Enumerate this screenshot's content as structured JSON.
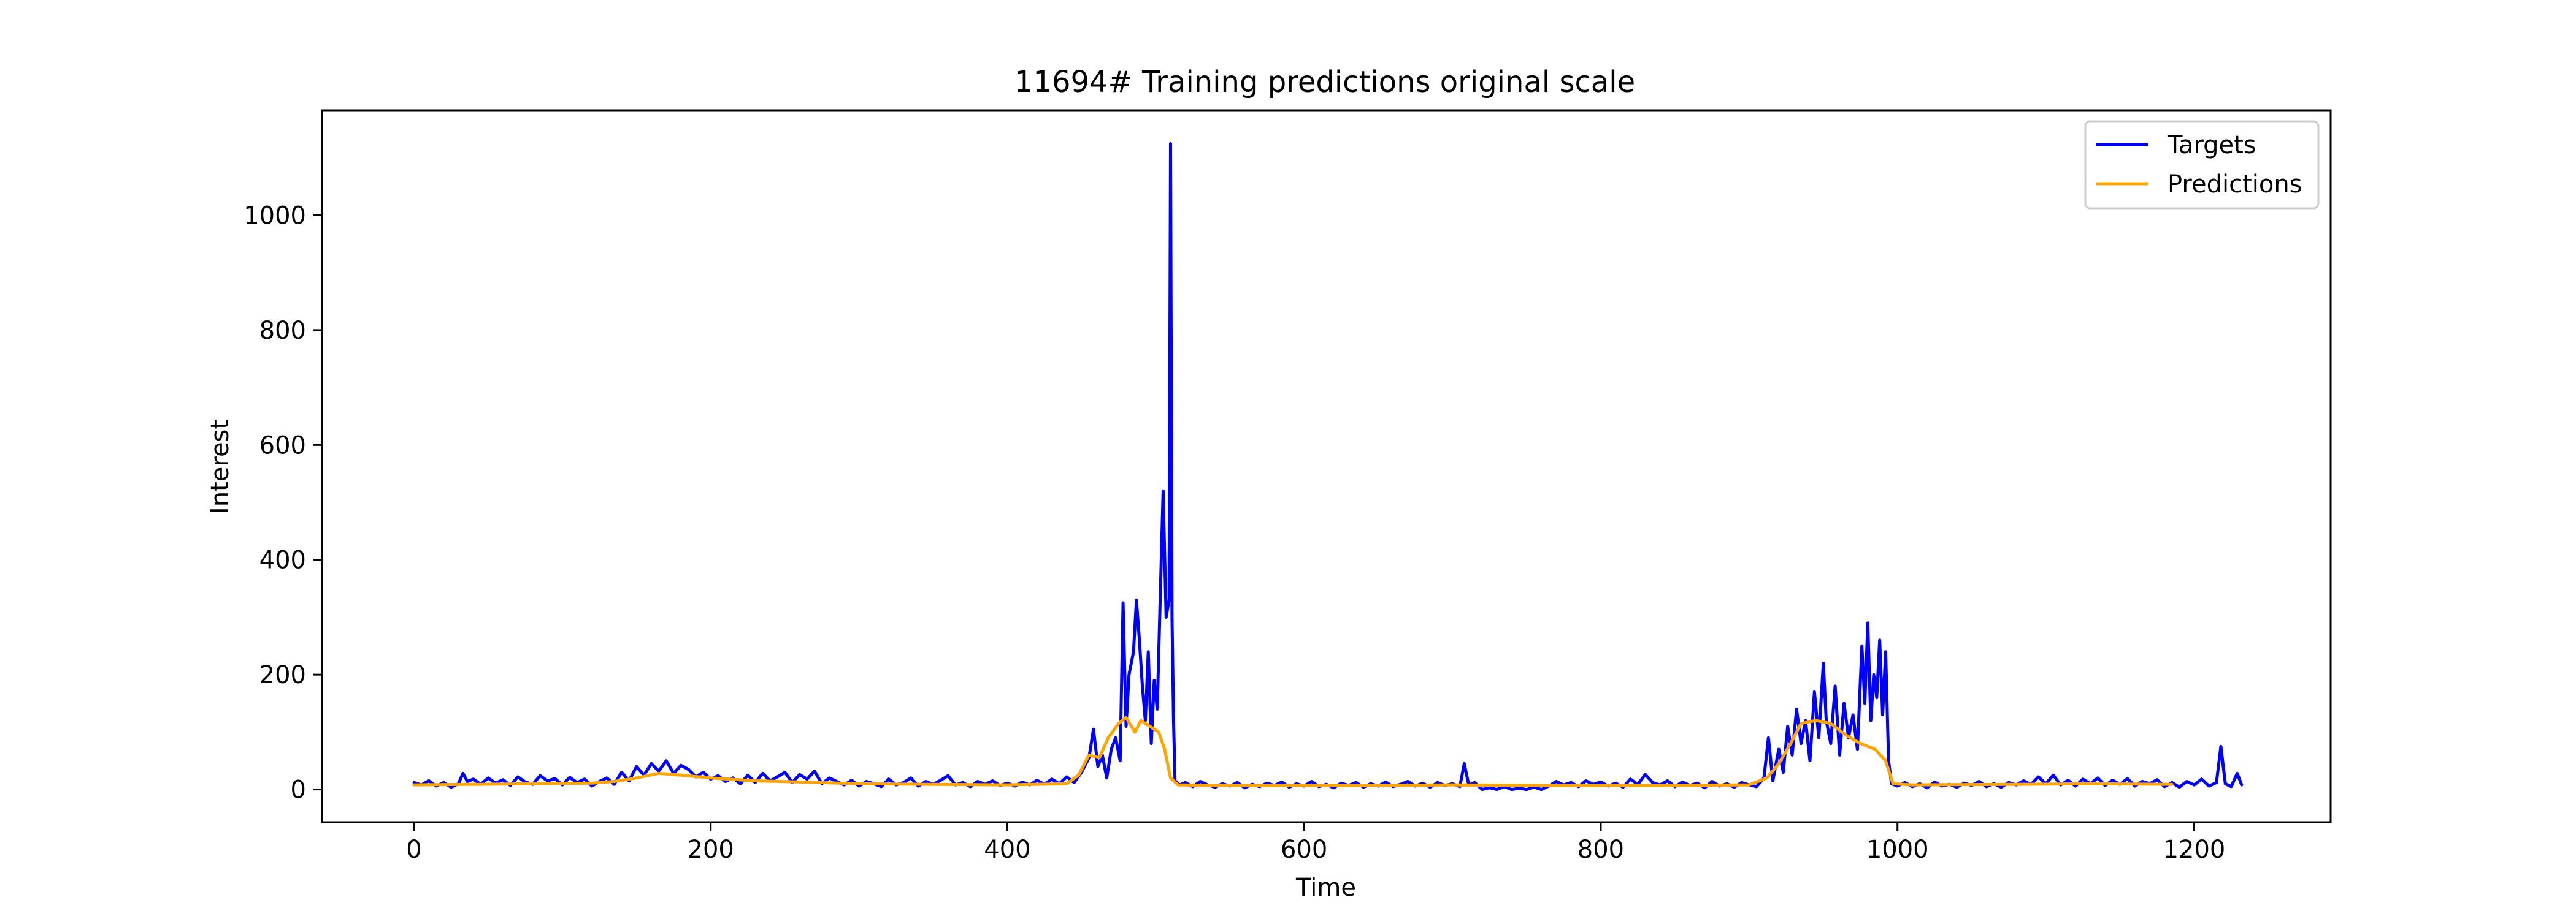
{
  "chart_data": {
    "type": "line",
    "title": "11694# Training predictions original scale",
    "xlabel": "Time",
    "ylabel": "Interest",
    "xlim": [
      -62,
      1292
    ],
    "ylim": [
      -57,
      1183
    ],
    "xticks": [
      0,
      200,
      400,
      600,
      800,
      1000,
      1200
    ],
    "yticks": [
      0,
      200,
      400,
      600,
      800,
      1000
    ],
    "grid": false,
    "legend_position": "upper right",
    "series": [
      {
        "name": "Targets",
        "color": "#0000ff",
        "points": [
          [
            0,
            12
          ],
          [
            5,
            8
          ],
          [
            10,
            15
          ],
          [
            15,
            6
          ],
          [
            20,
            12
          ],
          [
            25,
            4
          ],
          [
            30,
            10
          ],
          [
            33,
            28
          ],
          [
            36,
            14
          ],
          [
            40,
            18
          ],
          [
            45,
            9
          ],
          [
            50,
            20
          ],
          [
            55,
            11
          ],
          [
            60,
            17
          ],
          [
            65,
            7
          ],
          [
            70,
            22
          ],
          [
            75,
            13
          ],
          [
            80,
            9
          ],
          [
            85,
            24
          ],
          [
            90,
            15
          ],
          [
            95,
            19
          ],
          [
            100,
            8
          ],
          [
            105,
            21
          ],
          [
            110,
            12
          ],
          [
            115,
            18
          ],
          [
            120,
            6
          ],
          [
            125,
            14
          ],
          [
            130,
            20
          ],
          [
            135,
            9
          ],
          [
            140,
            30
          ],
          [
            145,
            15
          ],
          [
            150,
            40
          ],
          [
            155,
            25
          ],
          [
            160,
            45
          ],
          [
            165,
            32
          ],
          [
            170,
            50
          ],
          [
            175,
            28
          ],
          [
            180,
            42
          ],
          [
            185,
            35
          ],
          [
            190,
            22
          ],
          [
            195,
            30
          ],
          [
            200,
            18
          ],
          [
            205,
            24
          ],
          [
            210,
            14
          ],
          [
            215,
            20
          ],
          [
            220,
            10
          ],
          [
            225,
            25
          ],
          [
            230,
            12
          ],
          [
            235,
            28
          ],
          [
            240,
            15
          ],
          [
            245,
            22
          ],
          [
            250,
            30
          ],
          [
            255,
            12
          ],
          [
            260,
            26
          ],
          [
            265,
            18
          ],
          [
            270,
            32
          ],
          [
            275,
            10
          ],
          [
            280,
            20
          ],
          [
            285,
            14
          ],
          [
            290,
            8
          ],
          [
            295,
            16
          ],
          [
            300,
            6
          ],
          [
            305,
            14
          ],
          [
            310,
            10
          ],
          [
            315,
            5
          ],
          [
            320,
            18
          ],
          [
            325,
            8
          ],
          [
            330,
            12
          ],
          [
            335,
            20
          ],
          [
            340,
            6
          ],
          [
            345,
            14
          ],
          [
            350,
            9
          ],
          [
            355,
            16
          ],
          [
            360,
            24
          ],
          [
            365,
            8
          ],
          [
            370,
            12
          ],
          [
            375,
            5
          ],
          [
            380,
            14
          ],
          [
            385,
            9
          ],
          [
            390,
            15
          ],
          [
            395,
            7
          ],
          [
            400,
            11
          ],
          [
            405,
            6
          ],
          [
            410,
            13
          ],
          [
            415,
            8
          ],
          [
            420,
            16
          ],
          [
            425,
            9
          ],
          [
            430,
            18
          ],
          [
            435,
            10
          ],
          [
            440,
            22
          ],
          [
            445,
            12
          ],
          [
            450,
            30
          ],
          [
            455,
            55
          ],
          [
            458,
            105
          ],
          [
            461,
            40
          ],
          [
            464,
            60
          ],
          [
            467,
            20
          ],
          [
            470,
            70
          ],
          [
            473,
            90
          ],
          [
            476,
            50
          ],
          [
            478,
            325
          ],
          [
            480,
            110
          ],
          [
            482,
            200
          ],
          [
            485,
            240
          ],
          [
            487,
            330
          ],
          [
            489,
            260
          ],
          [
            491,
            180
          ],
          [
            493,
            120
          ],
          [
            495,
            240
          ],
          [
            497,
            80
          ],
          [
            499,
            190
          ],
          [
            501,
            140
          ],
          [
            503,
            330
          ],
          [
            505,
            520
          ],
          [
            507,
            300
          ],
          [
            509,
            330
          ],
          [
            510,
            1125
          ],
          [
            511,
            300
          ],
          [
            512,
            120
          ],
          [
            513,
            15
          ],
          [
            516,
            8
          ],
          [
            520,
            12
          ],
          [
            525,
            5
          ],
          [
            530,
            14
          ],
          [
            535,
            8
          ],
          [
            540,
            4
          ],
          [
            545,
            10
          ],
          [
            550,
            6
          ],
          [
            555,
            12
          ],
          [
            560,
            3
          ],
          [
            565,
            9
          ],
          [
            570,
            5
          ],
          [
            575,
            11
          ],
          [
            580,
            7
          ],
          [
            585,
            13
          ],
          [
            590,
            4
          ],
          [
            595,
            10
          ],
          [
            600,
            6
          ],
          [
            605,
            14
          ],
          [
            610,
            5
          ],
          [
            615,
            9
          ],
          [
            620,
            3
          ],
          [
            625,
            11
          ],
          [
            630,
            7
          ],
          [
            635,
            12
          ],
          [
            640,
            4
          ],
          [
            645,
            10
          ],
          [
            650,
            6
          ],
          [
            655,
            13
          ],
          [
            660,
            5
          ],
          [
            665,
            9
          ],
          [
            670,
            14
          ],
          [
            675,
            6
          ],
          [
            680,
            11
          ],
          [
            685,
            4
          ],
          [
            690,
            12
          ],
          [
            695,
            7
          ],
          [
            700,
            10
          ],
          [
            705,
            5
          ],
          [
            708,
            45
          ],
          [
            711,
            8
          ],
          [
            715,
            12
          ],
          [
            720,
            0
          ],
          [
            725,
            3
          ],
          [
            730,
            0
          ],
          [
            735,
            5
          ],
          [
            740,
            0
          ],
          [
            745,
            2
          ],
          [
            750,
            0
          ],
          [
            755,
            4
          ],
          [
            760,
            0
          ],
          [
            765,
            6
          ],
          [
            770,
            14
          ],
          [
            775,
            8
          ],
          [
            780,
            12
          ],
          [
            785,
            5
          ],
          [
            790,
            15
          ],
          [
            795,
            9
          ],
          [
            800,
            13
          ],
          [
            805,
            6
          ],
          [
            810,
            11
          ],
          [
            815,
            4
          ],
          [
            820,
            18
          ],
          [
            825,
            9
          ],
          [
            830,
            26
          ],
          [
            835,
            12
          ],
          [
            840,
            8
          ],
          [
            845,
            15
          ],
          [
            850,
            5
          ],
          [
            855,
            13
          ],
          [
            860,
            7
          ],
          [
            865,
            11
          ],
          [
            870,
            3
          ],
          [
            875,
            14
          ],
          [
            880,
            6
          ],
          [
            885,
            10
          ],
          [
            890,
            4
          ],
          [
            895,
            12
          ],
          [
            900,
            8
          ],
          [
            905,
            5
          ],
          [
            910,
            20
          ],
          [
            913,
            90
          ],
          [
            916,
            15
          ],
          [
            920,
            70
          ],
          [
            923,
            30
          ],
          [
            926,
            110
          ],
          [
            929,
            60
          ],
          [
            932,
            140
          ],
          [
            935,
            80
          ],
          [
            938,
            120
          ],
          [
            941,
            50
          ],
          [
            944,
            170
          ],
          [
            947,
            90
          ],
          [
            950,
            220
          ],
          [
            952,
            120
          ],
          [
            955,
            80
          ],
          [
            958,
            180
          ],
          [
            961,
            60
          ],
          [
            964,
            150
          ],
          [
            967,
            90
          ],
          [
            970,
            130
          ],
          [
            973,
            70
          ],
          [
            976,
            250
          ],
          [
            978,
            150
          ],
          [
            980,
            290
          ],
          [
            982,
            120
          ],
          [
            984,
            200
          ],
          [
            986,
            160
          ],
          [
            988,
            260
          ],
          [
            990,
            130
          ],
          [
            992,
            240
          ],
          [
            994,
            50
          ],
          [
            996,
            10
          ],
          [
            1000,
            6
          ],
          [
            1005,
            12
          ],
          [
            1010,
            5
          ],
          [
            1015,
            10
          ],
          [
            1020,
            3
          ],
          [
            1025,
            13
          ],
          [
            1030,
            6
          ],
          [
            1035,
            9
          ],
          [
            1040,
            4
          ],
          [
            1045,
            11
          ],
          [
            1050,
            7
          ],
          [
            1055,
            14
          ],
          [
            1060,
            5
          ],
          [
            1065,
            10
          ],
          [
            1070,
            4
          ],
          [
            1075,
            12
          ],
          [
            1080,
            8
          ],
          [
            1085,
            15
          ],
          [
            1090,
            9
          ],
          [
            1095,
            22
          ],
          [
            1100,
            10
          ],
          [
            1105,
            25
          ],
          [
            1110,
            8
          ],
          [
            1115,
            16
          ],
          [
            1120,
            6
          ],
          [
            1125,
            18
          ],
          [
            1130,
            10
          ],
          [
            1135,
            20
          ],
          [
            1140,
            7
          ],
          [
            1145,
            16
          ],
          [
            1150,
            9
          ],
          [
            1155,
            19
          ],
          [
            1160,
            6
          ],
          [
            1165,
            14
          ],
          [
            1170,
            10
          ],
          [
            1175,
            17
          ],
          [
            1180,
            5
          ],
          [
            1185,
            12
          ],
          [
            1190,
            4
          ],
          [
            1195,
            14
          ],
          [
            1200,
            8
          ],
          [
            1205,
            18
          ],
          [
            1210,
            6
          ],
          [
            1215,
            12
          ],
          [
            1218,
            75
          ],
          [
            1221,
            10
          ],
          [
            1225,
            5
          ],
          [
            1229,
            28
          ],
          [
            1232,
            8
          ]
        ]
      },
      {
        "name": "Predictions",
        "color": "#ffa500",
        "points": [
          [
            0,
            8
          ],
          [
            40,
            9
          ],
          [
            80,
            10
          ],
          [
            120,
            11
          ],
          [
            135,
            14
          ],
          [
            150,
            20
          ],
          [
            165,
            28
          ],
          [
            180,
            25
          ],
          [
            200,
            20
          ],
          [
            230,
            15
          ],
          [
            260,
            13
          ],
          [
            300,
            10
          ],
          [
            350,
            9
          ],
          [
            400,
            8
          ],
          [
            440,
            10
          ],
          [
            448,
            25
          ],
          [
            455,
            60
          ],
          [
            462,
            55
          ],
          [
            468,
            90
          ],
          [
            475,
            115
          ],
          [
            480,
            125
          ],
          [
            486,
            100
          ],
          [
            490,
            120
          ],
          [
            496,
            110
          ],
          [
            502,
            100
          ],
          [
            506,
            70
          ],
          [
            510,
            20
          ],
          [
            515,
            8
          ],
          [
            540,
            7
          ],
          [
            600,
            7
          ],
          [
            650,
            7
          ],
          [
            700,
            8
          ],
          [
            750,
            7
          ],
          [
            800,
            7
          ],
          [
            850,
            7
          ],
          [
            900,
            8
          ],
          [
            912,
            20
          ],
          [
            920,
            45
          ],
          [
            928,
            80
          ],
          [
            935,
            115
          ],
          [
            945,
            120
          ],
          [
            955,
            115
          ],
          [
            965,
            95
          ],
          [
            975,
            80
          ],
          [
            985,
            70
          ],
          [
            992,
            50
          ],
          [
            997,
            10
          ],
          [
            1010,
            8
          ],
          [
            1080,
            9
          ],
          [
            1130,
            10
          ],
          [
            1185,
            9
          ]
        ]
      }
    ]
  }
}
